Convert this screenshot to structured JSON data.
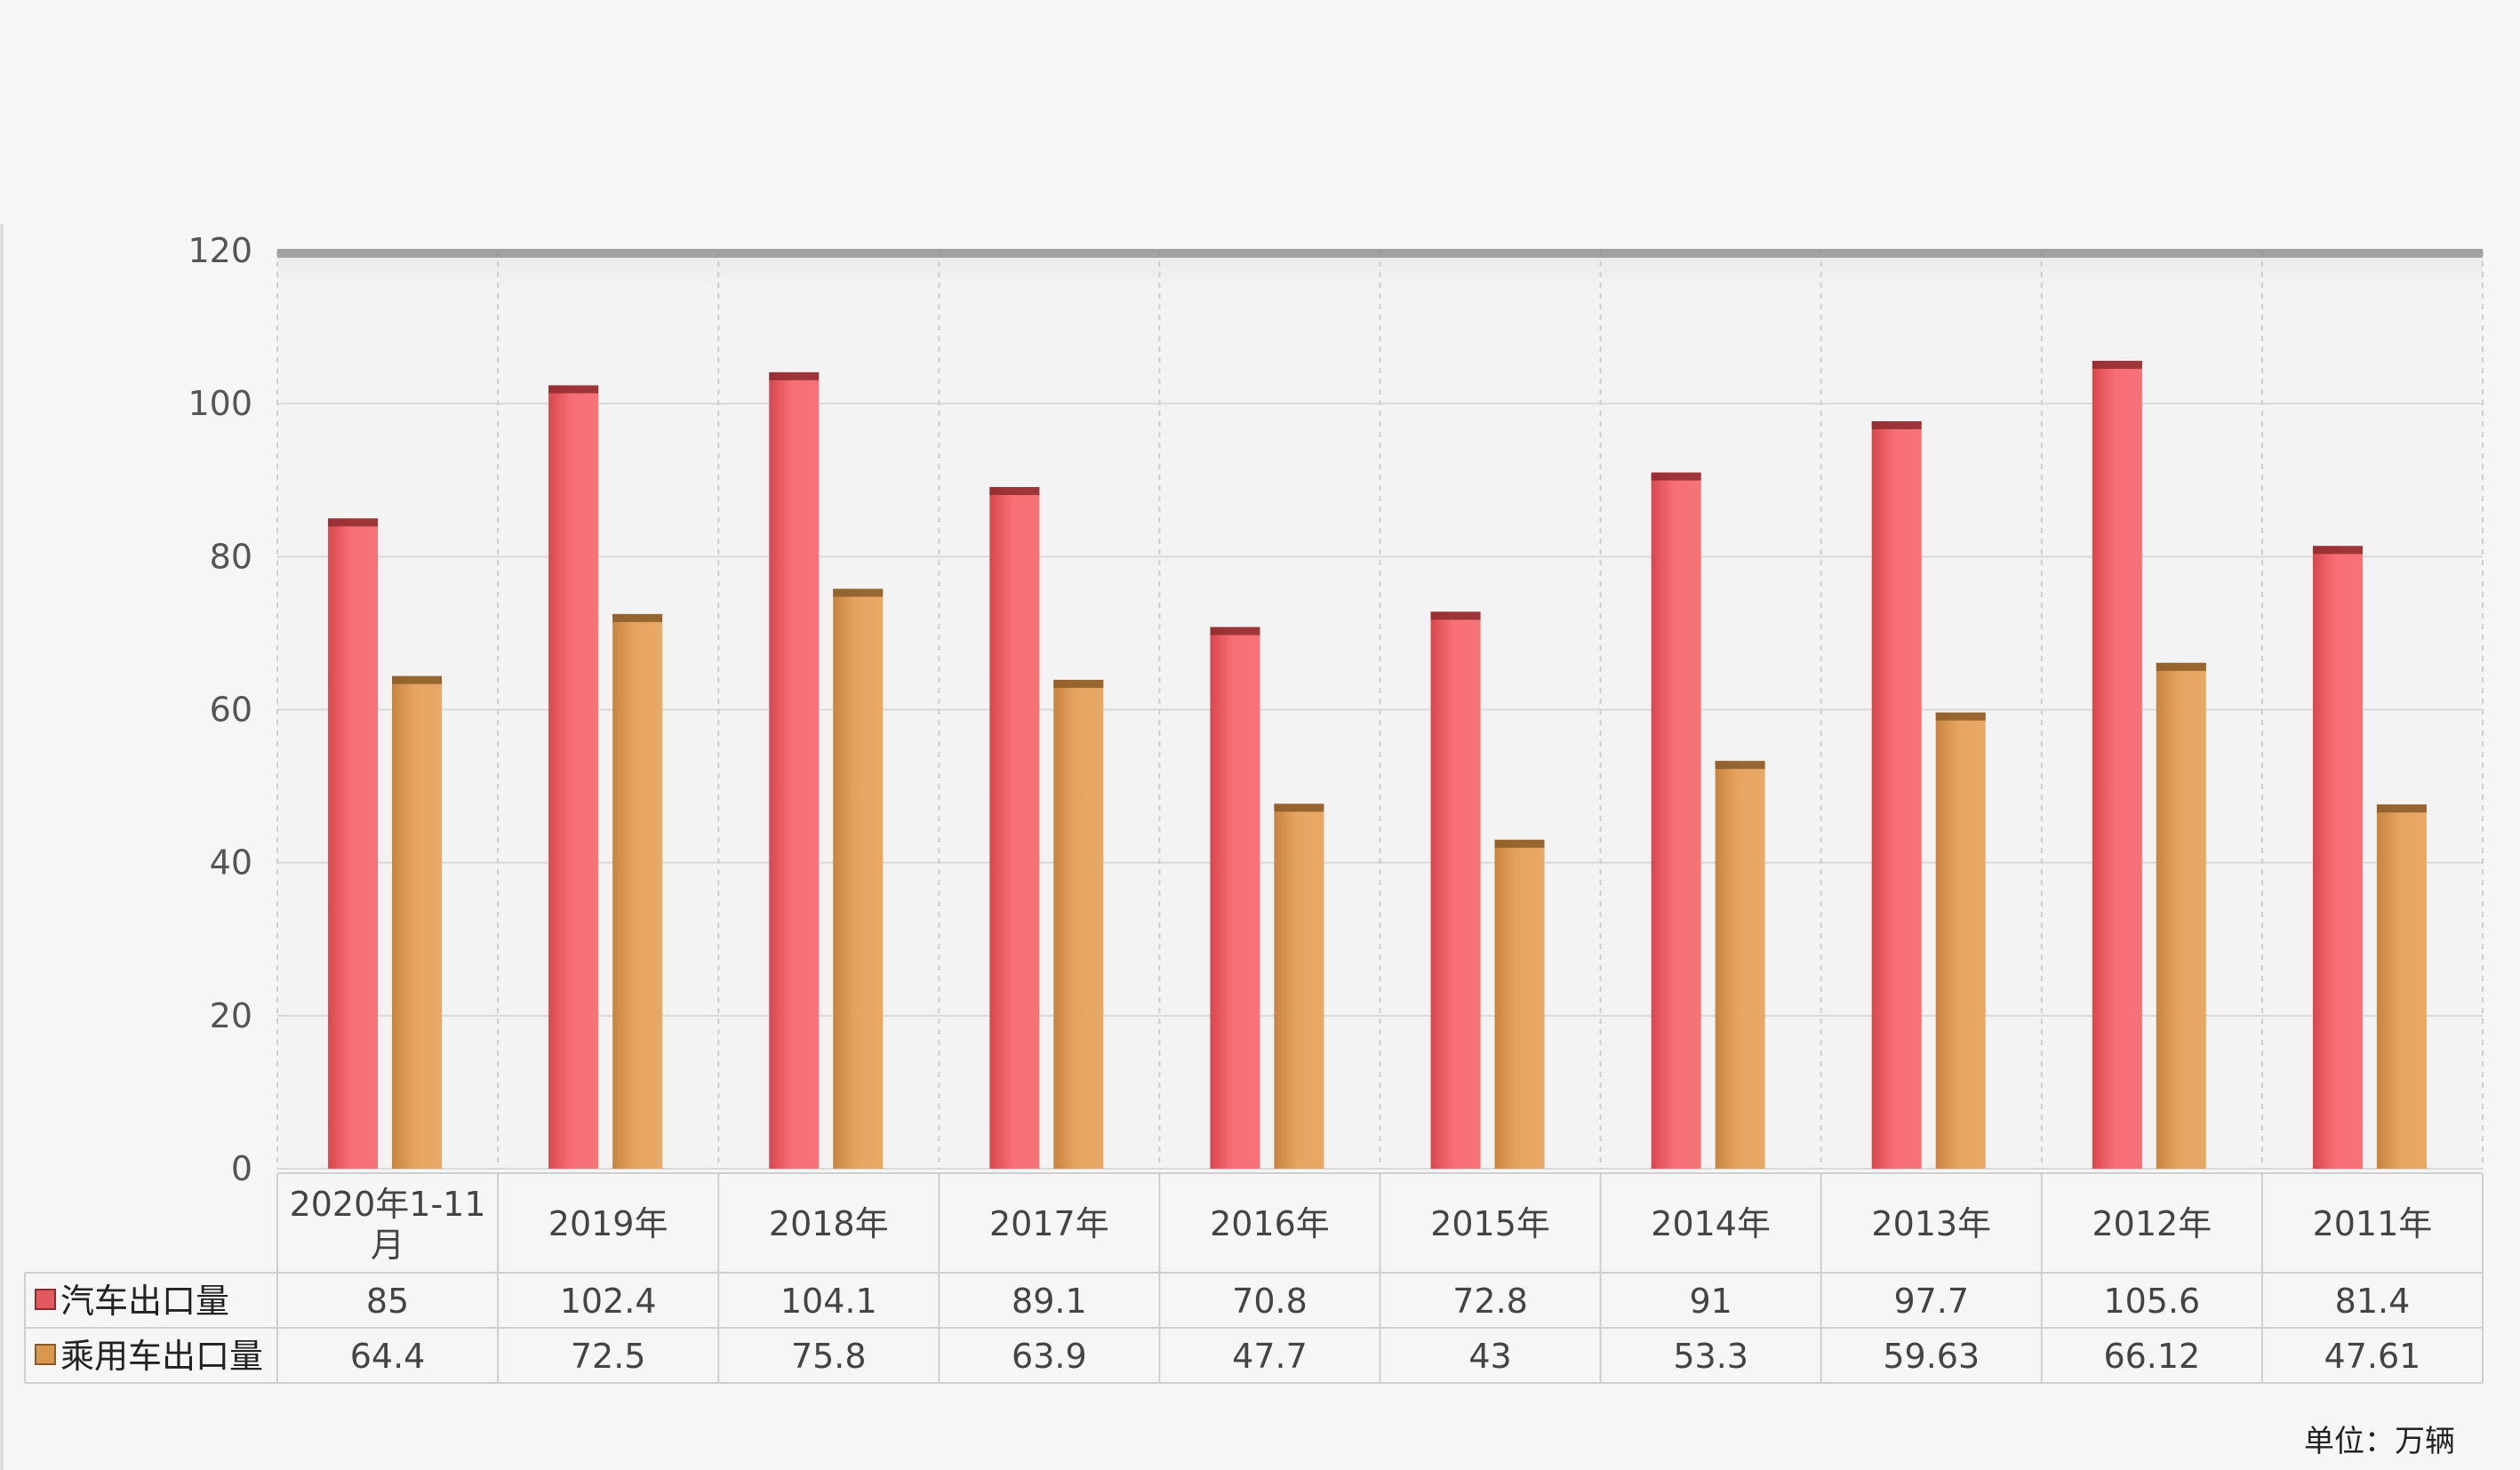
{
  "chart_data": {
    "type": "bar",
    "categories": [
      "2020年1-11月",
      "2019年",
      "2018年",
      "2017年",
      "2016年",
      "2015年",
      "2014年",
      "2013年",
      "2012年",
      "2011年"
    ],
    "series": [
      {
        "name": "汽车出口量",
        "values": [
          85,
          102.4,
          104.1,
          89.1,
          70.8,
          72.8,
          91,
          97.7,
          105.6,
          81.4
        ],
        "color": "#f26a6f"
      },
      {
        "name": "乘用车出口量",
        "values": [
          64.4,
          72.5,
          75.8,
          63.9,
          47.7,
          43,
          53.3,
          59.63,
          66.12,
          47.61
        ],
        "color": "#e4a25e"
      }
    ],
    "value_labels": [
      [
        "85",
        "102.4",
        "104.1",
        "89.1",
        "70.8",
        "72.8",
        "91",
        "97.7",
        "105.6",
        "81.4"
      ],
      [
        "64.4",
        "72.5",
        "75.8",
        "63.9",
        "47.7",
        "43",
        "53.3",
        "59.63",
        "66.12",
        "47.61"
      ]
    ],
    "ylim": [
      0,
      120
    ],
    "yticks": [
      0,
      20,
      40,
      60,
      80,
      100,
      120
    ],
    "grid": true,
    "data_table": true,
    "unit_note": "单位：万辆"
  }
}
